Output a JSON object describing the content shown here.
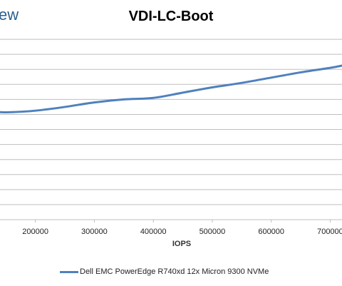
{
  "header": {
    "logo_text": "ew"
  },
  "chart_data": {
    "type": "line",
    "title": "VDI-LC-Boot",
    "xlabel": "IOPS",
    "ylabel": "",
    "x_ticks": [
      "200000",
      "300000",
      "400000",
      "500000",
      "600000",
      "700000"
    ],
    "x_tick_values": [
      200000,
      300000,
      400000,
      500000,
      600000,
      700000
    ],
    "xlim": [
      140000,
      720000
    ],
    "ylim": [
      0,
      13
    ],
    "grid": true,
    "legend_position": "bottom",
    "series": [
      {
        "name": "Dell EMC PowerEdge R740xd 12x Micron 9300 NVMe",
        "color": "#4f81bd",
        "x": [
          140000,
          160000,
          200000,
          250000,
          300000,
          350000,
          400000,
          450000,
          500000,
          550000,
          600000,
          650000,
          700000,
          720000
        ],
        "y": [
          7.15,
          7.15,
          7.25,
          7.5,
          7.8,
          8.0,
          8.1,
          8.45,
          8.8,
          9.1,
          9.45,
          9.8,
          10.1,
          10.25
        ]
      }
    ]
  }
}
